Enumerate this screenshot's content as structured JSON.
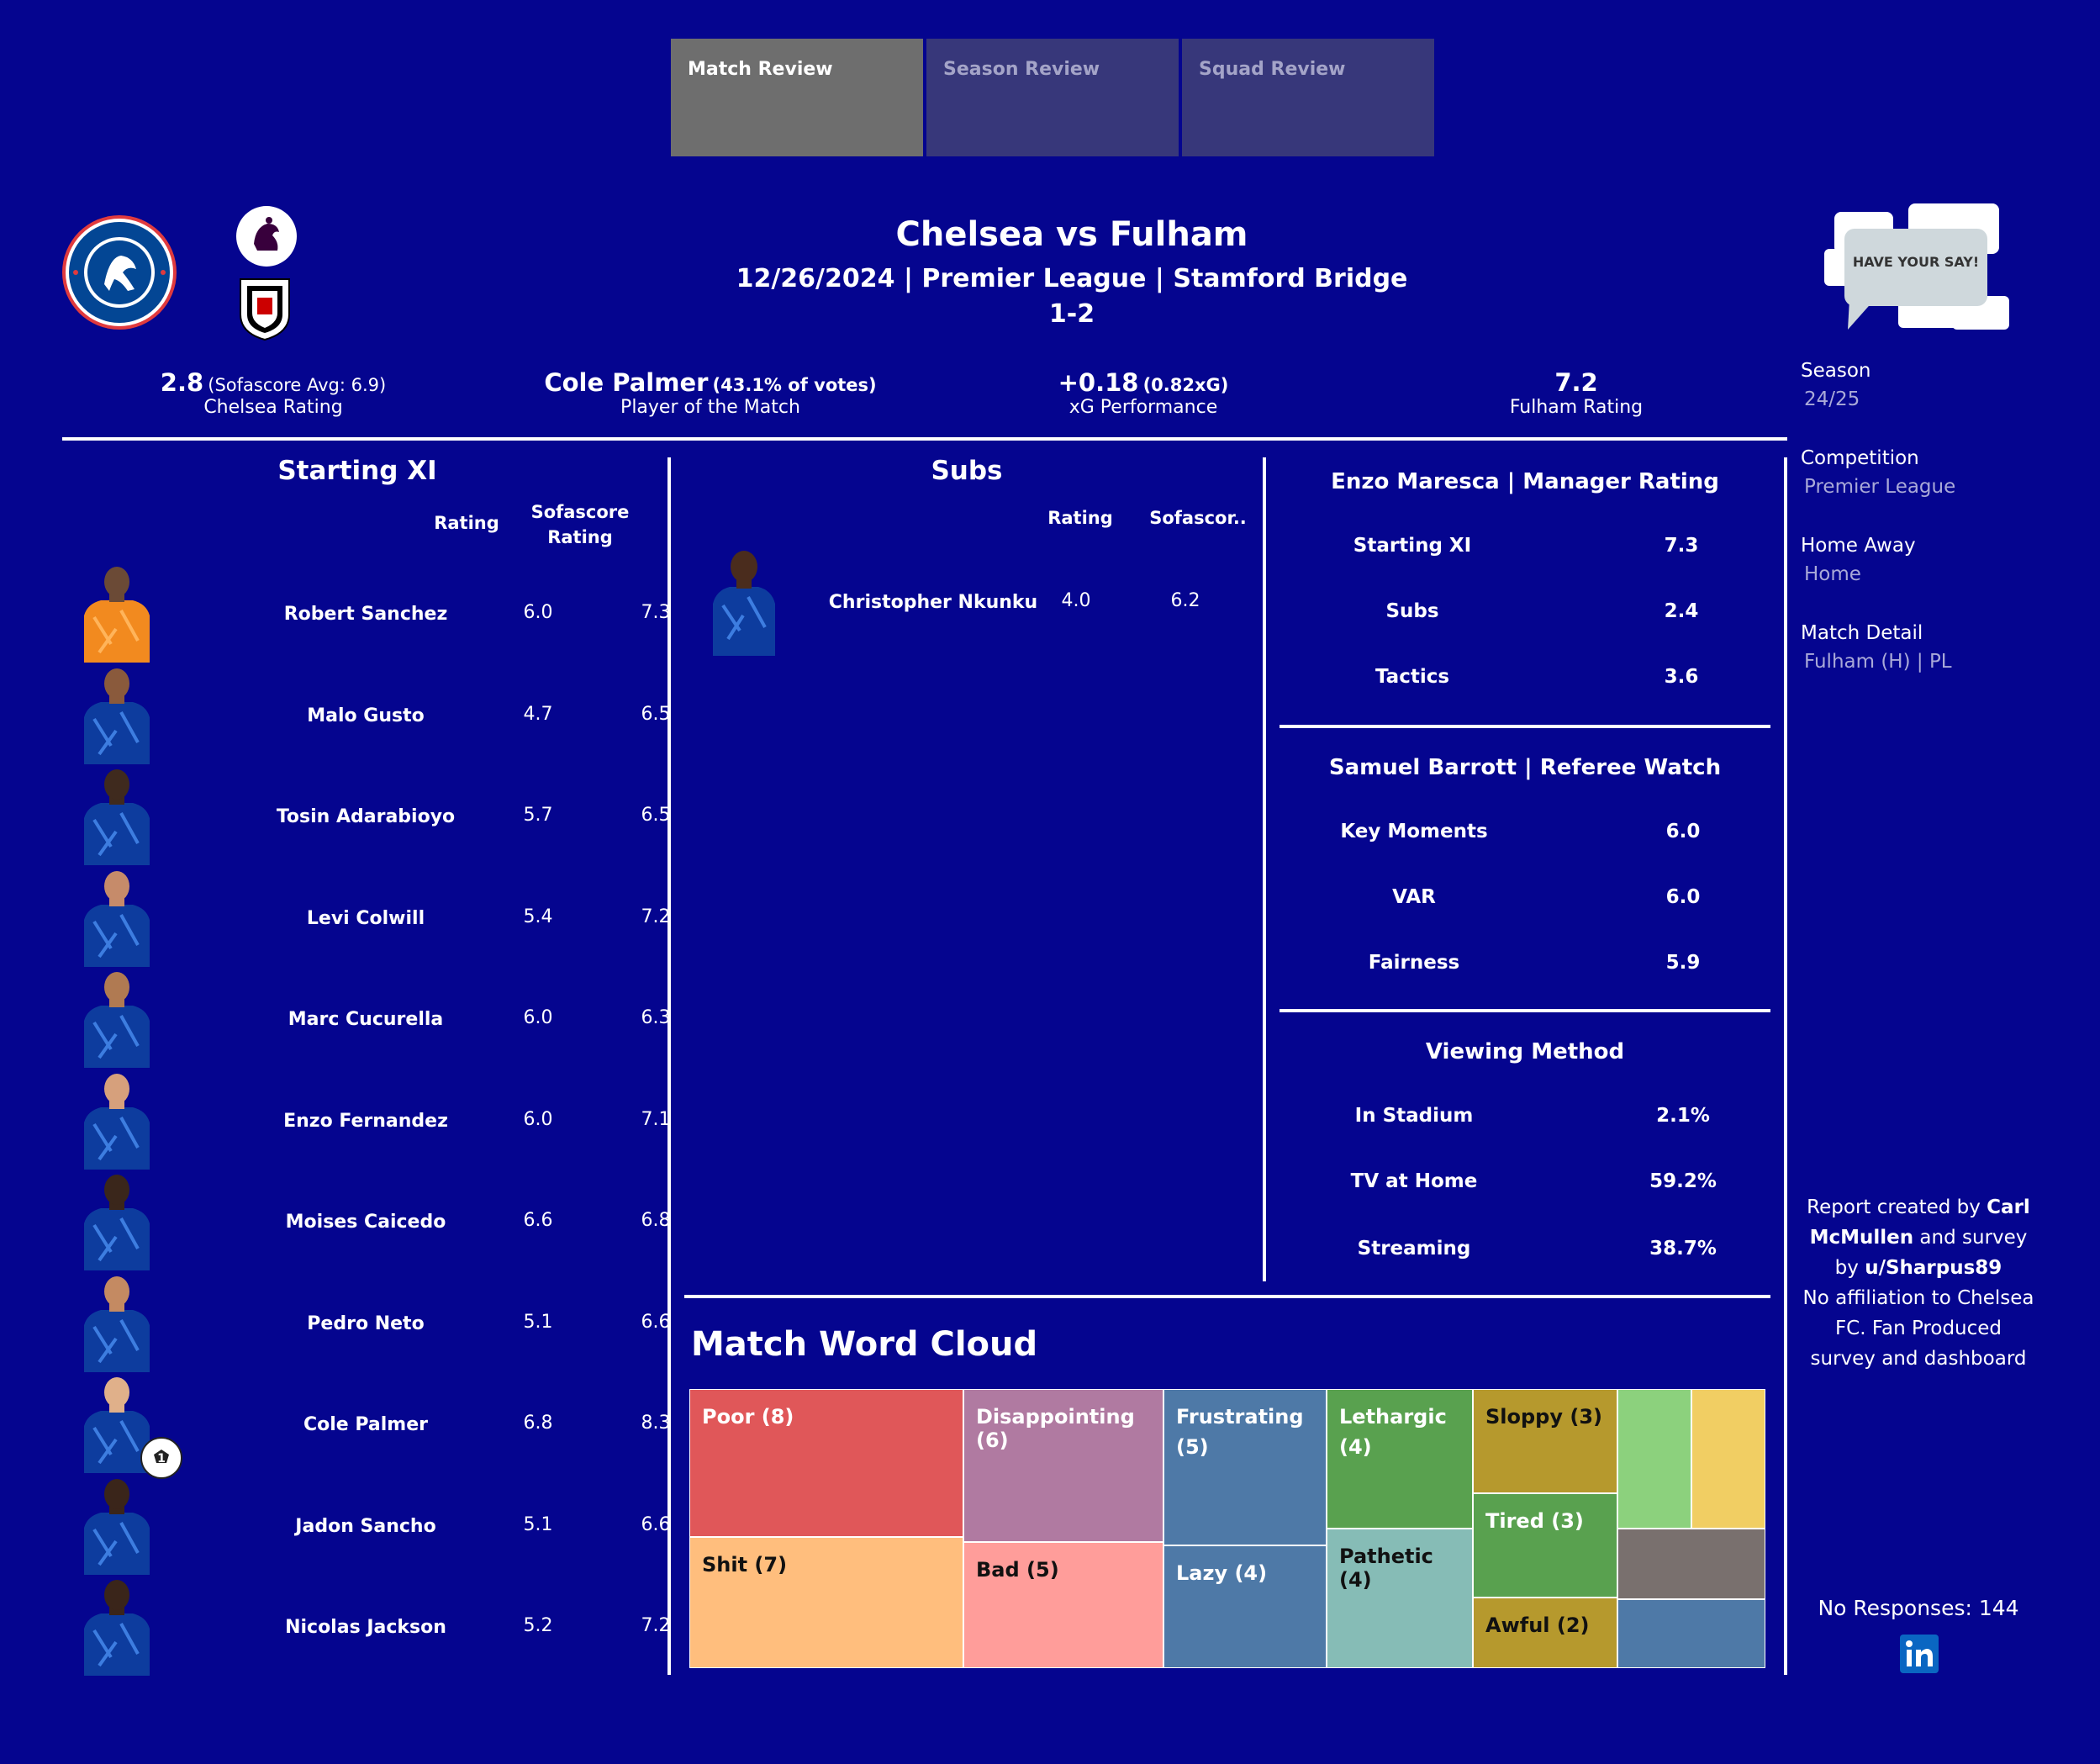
{
  "tabs": [
    {
      "label": "Match Review",
      "active": true
    },
    {
      "label": "Season Review",
      "active": false
    },
    {
      "label": "Squad Review",
      "active": false
    }
  ],
  "header": {
    "title": "Chelsea vs Fulham",
    "subtitle": "12/26/2024 | Premier League | Stamford Bridge",
    "score": "1-2",
    "feedback_badge": "HAVE YOUR SAY!"
  },
  "kpis": {
    "chelsea_rating": {
      "value": "2.8",
      "note": "(Sofascore Avg: 6.9)",
      "label": "Chelsea Rating"
    },
    "potm": {
      "value": "Cole Palmer",
      "note": "(43.1% of votes)",
      "label": "Player of the Match"
    },
    "xg": {
      "value": "+0.18",
      "note": "(0.82xG)",
      "label": "xG Performance"
    },
    "fulham_rating": {
      "value": "7.2",
      "note": "",
      "label": "Fulham Rating"
    }
  },
  "starting_xi": {
    "title": "Starting XI",
    "col_rating": "Rating",
    "col_sofascore": "Sofascore Rating",
    "players": [
      {
        "name": "Robert Sanchez",
        "rating": "6.0",
        "sofascore": "7.3",
        "kit": "goalkeeper"
      },
      {
        "name": "Malo Gusto",
        "rating": "4.7",
        "sofascore": "6.5",
        "kit": "home"
      },
      {
        "name": "Tosin Adarabioyo",
        "rating": "5.7",
        "sofascore": "6.5",
        "kit": "home"
      },
      {
        "name": "Levi Colwill",
        "rating": "5.4",
        "sofascore": "7.2",
        "kit": "home"
      },
      {
        "name": "Marc Cucurella",
        "rating": "6.0",
        "sofascore": "6.3",
        "kit": "home"
      },
      {
        "name": "Enzo Fernandez",
        "rating": "6.0",
        "sofascore": "7.1",
        "kit": "home"
      },
      {
        "name": "Moises Caicedo",
        "rating": "6.6",
        "sofascore": "6.8",
        "kit": "home"
      },
      {
        "name": "Pedro Neto",
        "rating": "5.1",
        "sofascore": "6.6",
        "kit": "home"
      },
      {
        "name": "Cole Palmer",
        "rating": "6.8",
        "sofascore": "8.3",
        "kit": "home",
        "goal_count": "1"
      },
      {
        "name": "Jadon Sancho",
        "rating": "5.1",
        "sofascore": "6.6",
        "kit": "home"
      },
      {
        "name": "Nicolas Jackson",
        "rating": "5.2",
        "sofascore": "7.2",
        "kit": "home"
      }
    ]
  },
  "subs": {
    "title": "Subs",
    "col_rating": "Rating",
    "col_sofascore": "Sofascor..",
    "players": [
      {
        "name": "Christopher Nkunku",
        "rating": "4.0",
        "sofascore": "6.2"
      }
    ]
  },
  "manager": {
    "title": "Enzo Maresca | Manager Rating",
    "rows": [
      {
        "label": "Starting XI",
        "value": "7.3"
      },
      {
        "label": "Subs",
        "value": "2.4"
      },
      {
        "label": "Tactics",
        "value": "3.6"
      }
    ]
  },
  "referee": {
    "title": "Samuel Barrott | Referee Watch",
    "rows": [
      {
        "label": "Key Moments",
        "value": "6.0"
      },
      {
        "label": "VAR",
        "value": "6.0"
      },
      {
        "label": "Fairness",
        "value": "5.9"
      }
    ]
  },
  "viewing": {
    "title": "Viewing Method",
    "rows": [
      {
        "label": "In Stadium",
        "value": "2.1%"
      },
      {
        "label": "TV at Home",
        "value": "59.2%"
      },
      {
        "label": "Streaming",
        "value": "38.7%"
      }
    ]
  },
  "word_cloud": {
    "title": "Match Word Cloud",
    "tiles": [
      {
        "label": "Poor (8)",
        "color": "#e05759"
      },
      {
        "label": "Shit (7)",
        "color": "#ffbe7d"
      },
      {
        "label": "Disappointing (6)",
        "color": "#b07aa1"
      },
      {
        "label": "Bad (5)",
        "color": "#ff9d9a"
      },
      {
        "label": "Frustrating (5)",
        "color": "#4e79a7"
      },
      {
        "label": "Lazy (4)",
        "color": "#4e79a7"
      },
      {
        "label": "Lethargic (4)",
        "color": "#59a14f"
      },
      {
        "label": "Pathetic (4)",
        "color": "#86bcb6"
      },
      {
        "label": "Sloppy (3)",
        "color": "#b6992d"
      },
      {
        "label": "Tired (3)",
        "color": "#59a14f"
      },
      {
        "label": "Awful (2)",
        "color": "#b6992d"
      },
      {
        "label": "",
        "color": "#8cd17d"
      },
      {
        "label": "",
        "color": "#f1ce63"
      },
      {
        "label": "",
        "color": "#79706e"
      },
      {
        "label": "",
        "color": "#4e79a7"
      }
    ]
  },
  "filters": [
    {
      "label": "Season",
      "value": "24/25"
    },
    {
      "label": "Competition",
      "value": "Premier League"
    },
    {
      "label": "Home Away",
      "value": "Home"
    },
    {
      "label": "Match Detail",
      "value": "Fulham (H) | PL"
    }
  ],
  "credits": {
    "part1": "Report created by ",
    "author": "Carl McMullen",
    "part2": " and survey by ",
    "surveyor": "u/Sharpus89",
    "disclaimer": "No affiliation to Chelsea FC. Fan Produced survey and dashboard"
  },
  "responses": "No Responses: 144",
  "colors": {
    "background": "#05058f",
    "tab_active": "#6e6e6e",
    "tab_inactive": "#37377a",
    "chelsea_blue": "#034694",
    "linkedin": "#0a66c2"
  }
}
